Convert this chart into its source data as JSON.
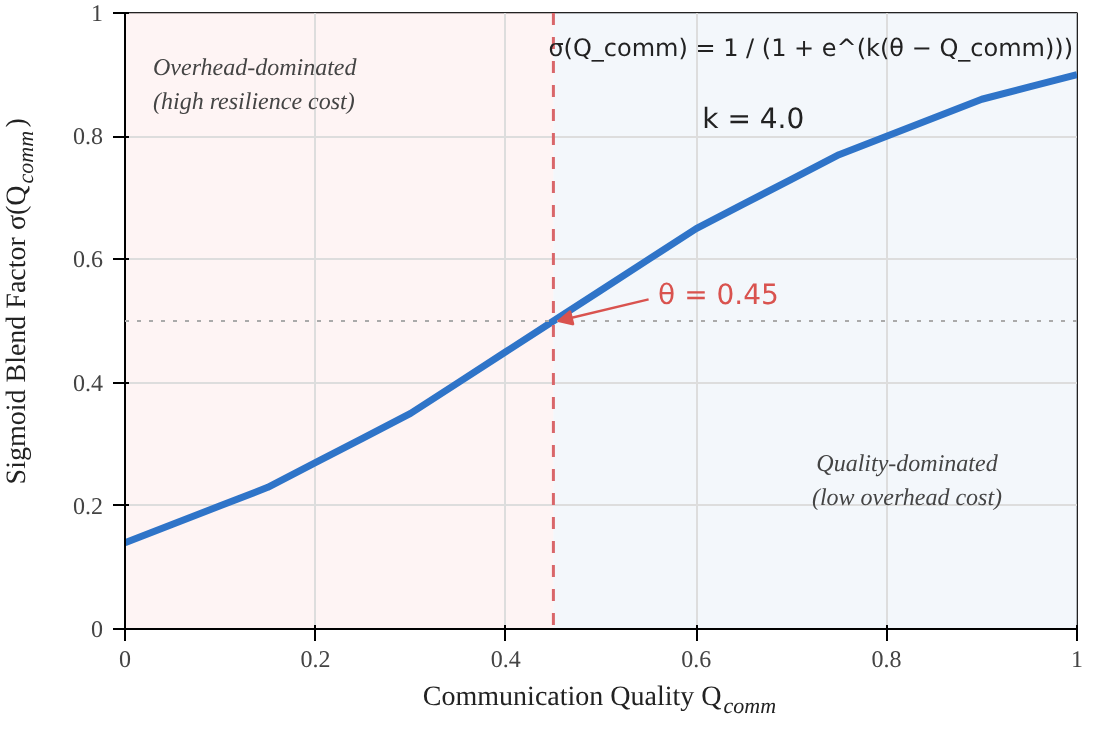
{
  "chart_data": {
    "type": "line",
    "xlabel": "Communication Quality Q$_{comm}$",
    "ylabel": "Sigmoid Blend Factor σ(Q$_{comm}$)",
    "x": [
      0,
      0.05,
      0.1,
      0.15,
      0.2,
      0.25,
      0.3,
      0.35,
      0.4,
      0.45,
      0.5,
      0.55,
      0.6,
      0.65,
      0.7,
      0.75,
      0.8,
      0.85,
      0.9,
      0.95,
      1.0
    ],
    "series": [
      {
        "color": "#2f74c8",
        "values": [
          0.14,
          0.17,
          0.2,
          0.23,
          0.27,
          0.31,
          0.35,
          0.4,
          0.45,
          0.5,
          0.55,
          0.6,
          0.65,
          0.69,
          0.73,
          0.77,
          0.8,
          0.83,
          0.86,
          0.88,
          0.9
        ]
      }
    ],
    "xlim": [
      0,
      1
    ],
    "ylim": [
      0,
      1
    ],
    "xticks": [
      0,
      0.2,
      0.4,
      0.6,
      0.8,
      1.0
    ],
    "yticks": [
      0,
      0.2,
      0.4,
      0.6,
      0.8,
      1.0
    ],
    "grid": true,
    "line_style": "solid",
    "marker": "none",
    "bands": [
      {
        "axis": "x",
        "from": 0,
        "to": 0.45,
        "label": "Overhead-dominated\n(high resilience cost)",
        "color": "#fdeff0"
      },
      {
        "axis": "x",
        "from": 0.45,
        "to": 1,
        "label": "Quality-dominated\n(low overhead cost)",
        "color": "#eef3fa"
      }
    ],
    "ref_lines": [
      {
        "axis": "x",
        "value": 0.45,
        "color": "#d9666a",
        "line_style": "dashed"
      },
      {
        "axis": "y",
        "value": 0.5,
        "color": "#aaaaaa",
        "line_style": "dotted"
      }
    ],
    "annotations": [
      {
        "text": "θ = 0.45",
        "x": 0.45,
        "y": 0.5
      },
      "σ(Q_comm) = 1 / (1 + e^(k(θ − Q_comm)))",
      "k = 4.0"
    ]
  }
}
